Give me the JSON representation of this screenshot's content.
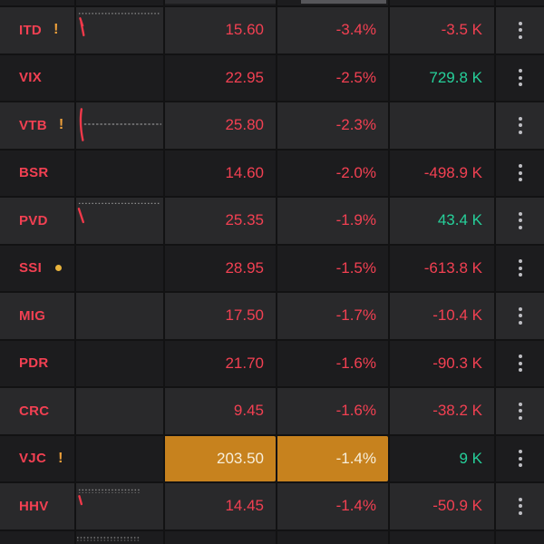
{
  "app": {
    "name": "stock-watchlist"
  },
  "colors": {
    "red": "#f24052",
    "green": "#26d09a",
    "row_light": "#29292b",
    "row_dark": "#1c1c1e",
    "divider": "#121213",
    "highlight_bg": "#c7821e",
    "highlight_text": "#f7efdc",
    "marker_orange": "#f0a13a",
    "dot_marker": "#e8b33c",
    "menu_dots": "#bebec3",
    "flash_gray": "#56565a",
    "spark_gray": "#8f8f8f",
    "spark_red": "#f2394a"
  },
  "table": {
    "columns": [
      "symbol",
      "sparkline",
      "last_price",
      "change_percent",
      "volume",
      "row_menu"
    ],
    "rows": [
      {
        "symbol": "ITD",
        "marker": "exclamation",
        "price": "15.60",
        "change": "-3.4%",
        "volume": "-3.5 K",
        "volume_trend": "down",
        "sparkline": "dotted-top-red-zigzag",
        "shade": "light",
        "highlight": []
      },
      {
        "symbol": "VIX",
        "marker": null,
        "price": "22.95",
        "change": "-2.5%",
        "volume": "729.8 K",
        "volume_trend": "up",
        "sparkline": null,
        "shade": "dark",
        "highlight": []
      },
      {
        "symbol": "VTB",
        "marker": "exclamation",
        "price": "25.80",
        "change": "-2.3%",
        "volume": "",
        "volume_trend": null,
        "sparkline": "red-drop-gray-flat",
        "shade": "light",
        "highlight": []
      },
      {
        "symbol": "BSR",
        "marker": null,
        "price": "14.60",
        "change": "-2.0%",
        "volume": "-498.9 K",
        "volume_trend": "down",
        "sparkline": null,
        "shade": "dark",
        "highlight": []
      },
      {
        "symbol": "PVD",
        "marker": null,
        "price": "25.35",
        "change": "-1.9%",
        "volume": "43.4 K",
        "volume_trend": "up",
        "sparkline": "dotted-top-red-diagonal",
        "shade": "light",
        "highlight": []
      },
      {
        "symbol": "SSI",
        "marker": "dot",
        "price": "28.95",
        "change": "-1.5%",
        "volume": "-613.8 K",
        "volume_trend": "down",
        "sparkline": null,
        "shade": "dark",
        "highlight": []
      },
      {
        "symbol": "MIG",
        "marker": null,
        "price": "17.50",
        "change": "-1.7%",
        "volume": "-10.4 K",
        "volume_trend": "down",
        "sparkline": null,
        "shade": "light",
        "highlight": []
      },
      {
        "symbol": "PDR",
        "marker": null,
        "price": "21.70",
        "change": "-1.6%",
        "volume": "-90.3 K",
        "volume_trend": "down",
        "sparkline": null,
        "shade": "dark",
        "highlight": []
      },
      {
        "symbol": "CRC",
        "marker": null,
        "price": "9.45",
        "change": "-1.6%",
        "volume": "-38.2 K",
        "volume_trend": "down",
        "sparkline": null,
        "shade": "light",
        "highlight": []
      },
      {
        "symbol": "VJC",
        "marker": "exclamation",
        "price": "203.50",
        "change": "-1.4%",
        "volume": "9 K",
        "volume_trend": "up",
        "sparkline": null,
        "shade": "dark",
        "highlight": [
          "price",
          "change"
        ]
      },
      {
        "symbol": "HHV",
        "marker": null,
        "price": "14.45",
        "change": "-1.4%",
        "volume": "-50.9 K",
        "volume_trend": "down",
        "sparkline": "dotted-top-red-tick",
        "shade": "light",
        "highlight": []
      }
    ],
    "partial_top_row": {
      "flash_cells": [
        "last_price",
        "change_percent"
      ]
    },
    "partial_bottom_row": {
      "sparkline": "dotted-top-short"
    }
  }
}
